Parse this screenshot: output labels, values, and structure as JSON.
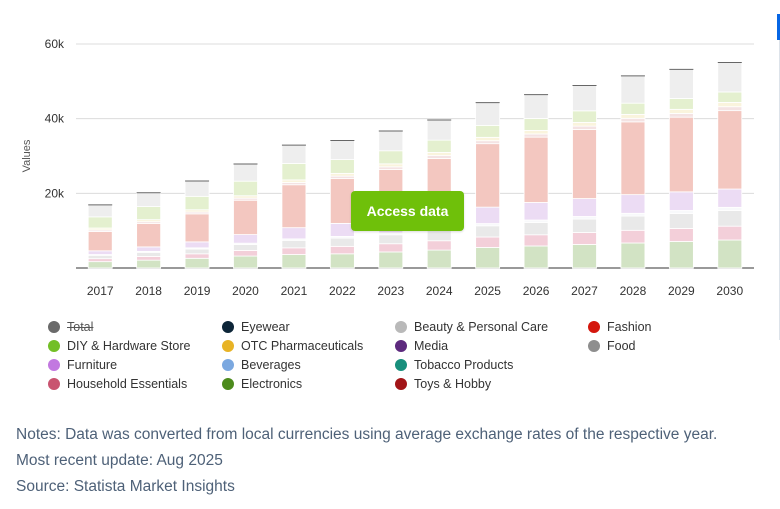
{
  "chart_data": {
    "type": "bar",
    "stacked": true,
    "ylabel": "Values",
    "xlabel": "",
    "ylim": [
      0,
      60000
    ],
    "yticks": [
      {
        "value": 20000,
        "label": "20k"
      },
      {
        "value": 40000,
        "label": "40k"
      },
      {
        "value": 60000,
        "label": "60k"
      }
    ],
    "grid": true,
    "legend_position": "bottom",
    "categories": [
      "2017",
      "2018",
      "2019",
      "2020",
      "2021",
      "2022",
      "2023",
      "2024",
      "2025",
      "2026",
      "2027",
      "2028",
      "2029",
      "2030"
    ],
    "series": [
      {
        "name": "Food",
        "color": "#d2e3c4",
        "values": [
          1700,
          2100,
          2600,
          3200,
          3600,
          3800,
          4300,
          4800,
          5500,
          5900,
          6300,
          6700,
          7100,
          7500
        ]
      },
      {
        "name": "Household Essentials",
        "color": "#f3cfd9",
        "values": [
          800,
          1000,
          1200,
          1500,
          1800,
          2000,
          2200,
          2500,
          2800,
          3000,
          3200,
          3400,
          3500,
          3700
        ]
      },
      {
        "name": "Beauty & Personal Care",
        "color": "#e9e9e9",
        "values": [
          900,
          1100,
          1300,
          1600,
          2000,
          2200,
          2400,
          2700,
          3000,
          3300,
          3600,
          3800,
          4000,
          4200
        ]
      },
      {
        "name": "Eyewear",
        "color": "#f8f9fb",
        "values": [
          200,
          250,
          300,
          350,
          400,
          450,
          500,
          550,
          600,
          650,
          700,
          750,
          800,
          850
        ]
      },
      {
        "name": "Furniture",
        "color": "#ecdcf4",
        "values": [
          1000,
          1200,
          1600,
          2300,
          3000,
          3500,
          3500,
          3800,
          4400,
          4700,
          4800,
          5000,
          5000,
          4900
        ]
      },
      {
        "name": "Fashion",
        "color": "#f3c7c0",
        "values": [
          5200,
          6300,
          7500,
          9200,
          11500,
          12000,
          13500,
          15000,
          17000,
          17500,
          18500,
          19500,
          20000,
          21000
        ]
      },
      {
        "name": "Toys & Hobby",
        "color": "#f4e3e3",
        "values": [
          400,
          450,
          500,
          550,
          600,
          650,
          700,
          750,
          800,
          850,
          900,
          950,
          1000,
          1050
        ]
      },
      {
        "name": "OTC Pharmaceuticals",
        "color": "#faf4dd",
        "values": [
          500,
          550,
          600,
          650,
          700,
          750,
          800,
          850,
          900,
          950,
          1000,
          1050,
          1100,
          1150
        ]
      },
      {
        "name": "DIY & Hardware Store",
        "color": "#e4f0cf",
        "values": [
          3000,
          3500,
          3600,
          3900,
          4400,
          3700,
          3500,
          3300,
          3200,
          3200,
          3100,
          3000,
          2900,
          2800
        ]
      },
      {
        "name": "Electronics",
        "color": "#eeeeee",
        "values": [
          3200,
          3700,
          4100,
          4600,
          4900,
          5100,
          5300,
          5400,
          6100,
          6400,
          6800,
          7300,
          7800,
          7900
        ]
      }
    ]
  },
  "legend": [
    {
      "label": "Total",
      "color": "#6a6a6a",
      "disabled": true
    },
    {
      "label": "DIY & Hardware Store",
      "color": "#73bf26"
    },
    {
      "label": "Furniture",
      "color": "#c278e0"
    },
    {
      "label": "Household Essentials",
      "color": "#c95470"
    },
    {
      "label": "Eyewear",
      "color": "#0d2538"
    },
    {
      "label": "OTC Pharmaceuticals",
      "color": "#e8b325"
    },
    {
      "label": "Beverages",
      "color": "#7ba8e0"
    },
    {
      "label": "Electronics",
      "color": "#4c8b1c"
    },
    {
      "label": "Beauty & Personal Care",
      "color": "#b9b9b9"
    },
    {
      "label": "Media",
      "color": "#5d2a7e"
    },
    {
      "label": "Tobacco Products",
      "color": "#188f7c"
    },
    {
      "label": "Toys & Hobby",
      "color": "#a21517"
    },
    {
      "label": "Fashion",
      "color": "#d4170d"
    },
    {
      "label": "Food",
      "color": "#8e8e8e"
    }
  ],
  "cta": {
    "label": "Access data",
    "color": "#6fc00a"
  },
  "notes": {
    "line1": "Notes: Data was converted from local currencies using average exchange rates of the respective year.",
    "line2": "Most recent update: Aug 2025",
    "line3": "Source: Statista Market Insights"
  }
}
